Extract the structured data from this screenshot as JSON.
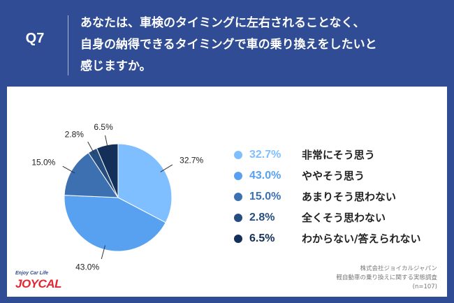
{
  "header": {
    "q_label": "Q7",
    "question_lines": [
      "あなたは、車検のタイミングに左右されることなく、",
      "自身の納得できるタイミングで車の乗り換えをしたいと",
      "感じますか。"
    ]
  },
  "chart_data": {
    "type": "pie",
    "title": "",
    "slices": [
      {
        "label": "非常にそう思う",
        "value": 32.7,
        "pct_text": "32.7%",
        "color": "#7fbfff"
      },
      {
        "label": "ややそう思う",
        "value": 43.0,
        "pct_text": "43.0%",
        "color": "#58a1f0"
      },
      {
        "label": "あまりそう思わない",
        "value": 15.0,
        "pct_text": "15.0%",
        "color": "#3c70b0"
      },
      {
        "label": "全くそう思わない",
        "value": 2.8,
        "pct_text": "2.8%",
        "color": "#264d80"
      },
      {
        "label": "わからない/答えられない",
        "value": 6.5,
        "pct_text": "6.5%",
        "color": "#14305a"
      }
    ],
    "start_angle_deg": 0,
    "direction": "clockwise",
    "legend_placement": "right"
  },
  "footer": {
    "logo_tagline": "Enjoy Car Life",
    "logo_text": "JOYCAL",
    "source_lines": [
      "株式会社ジョイカルジャパン",
      "軽自動車の乗り換えに関する実態調査",
      "(n=107)"
    ]
  }
}
